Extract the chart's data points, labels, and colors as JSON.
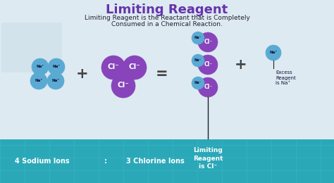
{
  "title": "Limiting Reagent",
  "subtitle_line1": "Limiting Reagent is the Reactant that is Completely",
  "subtitle_line2": "Consumed in a Chemical Reaction.",
  "bg_color_top": "#ddeaf2",
  "bottom_bar_color": "#2ba8b8",
  "title_color": "#6633aa",
  "subtitle_color": "#222233",
  "na_color": "#5aaad4",
  "cl_color": "#8844bb",
  "na_label": "Na⁺",
  "cl_label": "Cl⁻",
  "bottom_left_text1": "4 Sodium Ions",
  "bottom_left_text2": ":",
  "bottom_left_text3": "3 Chlorine Ions",
  "bottom_right_text": "Limiting\nReagent\nis Cl⁻",
  "excess_text": "Excess\nReagent\nis Na⁺",
  "plus_sign": "+",
  "equals_sign": "=",
  "grid_color": "#3abbc8",
  "white_panel_color": "#eaf2f8"
}
